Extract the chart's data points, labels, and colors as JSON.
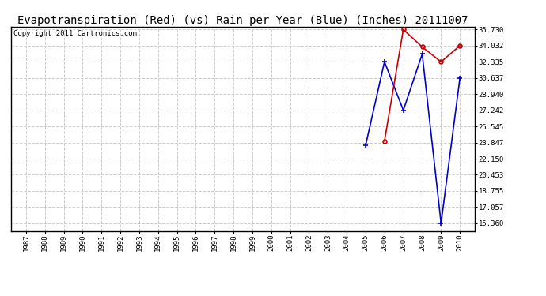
{
  "title": "Evapotranspiration (Red) (vs) Rain per Year (Blue) (Inches) 20111007",
  "copyright": "Copyright 2011 Cartronics.com",
  "x_years": [
    "1987",
    "1988",
    "1989",
    "1990",
    "1991",
    "1992",
    "1993",
    "1994",
    "1995",
    "1996",
    "1997",
    "1998",
    "1999",
    "2000",
    "2001",
    "2002",
    "2003",
    "2004",
    "2005",
    "2006",
    "2007",
    "2008",
    "2009",
    "2010"
  ],
  "blue_data": {
    "years": [
      2005,
      2006,
      2007,
      2008,
      2009,
      2010
    ],
    "values": [
      23.55,
      32.335,
      27.242,
      33.15,
      15.36,
      30.637
    ]
  },
  "red_data": {
    "years": [
      2006,
      2007,
      2008,
      2009,
      2010
    ],
    "values": [
      24.0,
      35.73,
      33.9,
      32.335,
      34.032
    ]
  },
  "yticks": [
    15.36,
    17.057,
    18.755,
    20.453,
    22.15,
    23.847,
    25.545,
    27.242,
    28.94,
    30.637,
    32.335,
    34.032,
    35.73
  ],
  "ytick_labels": [
    "15.360",
    "17.057",
    "18.755",
    "20.453",
    "22.150",
    "23.847",
    "25.545",
    "27.242",
    "28.940",
    "30.637",
    "32.335",
    "34.032",
    "35.730"
  ],
  "bg_color": "#ffffff",
  "plot_bg_color": "#ffffff",
  "grid_color": "#cccccc",
  "blue_color": "#0000cc",
  "red_color": "#cc0000",
  "title_fontsize": 10,
  "copyright_fontsize": 6.5,
  "figwidth": 6.9,
  "figheight": 3.75,
  "dpi": 100
}
